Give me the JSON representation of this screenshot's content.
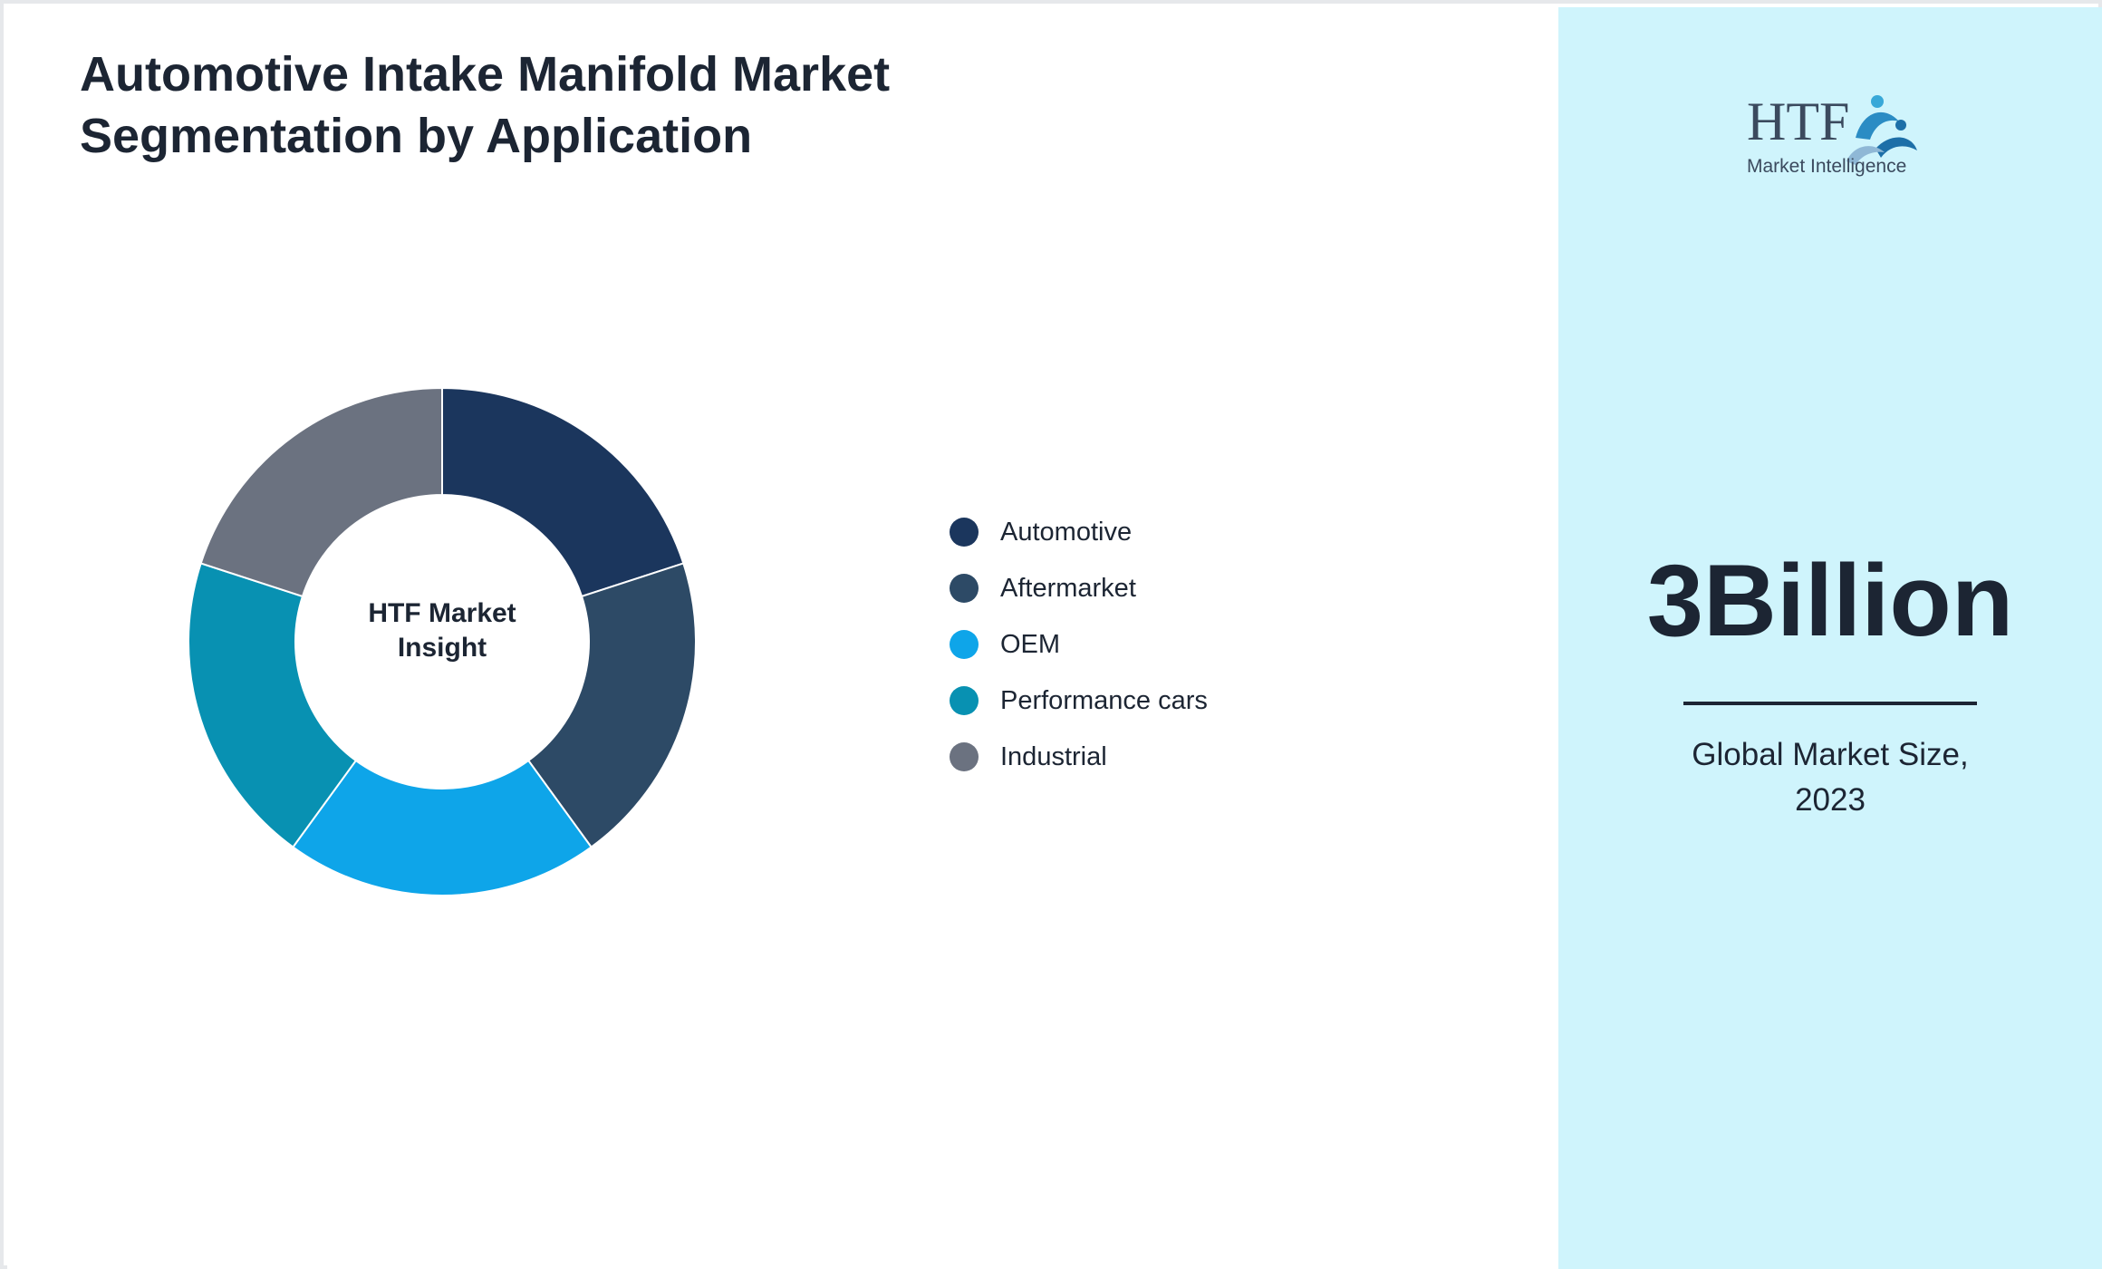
{
  "title": {
    "line1": "Automotive Intake Manifold Market",
    "line2": "Segmentation by Application"
  },
  "chart_data": {
    "type": "pie",
    "title": "Automotive Intake Manifold Market Segmentation by Application",
    "center_label": [
      "HTF Market",
      "Insight"
    ],
    "categories": [
      "Automotive",
      "Aftermarket",
      "OEM",
      "Performance cars",
      "Industrial"
    ],
    "values": [
      20,
      20,
      20,
      20,
      20
    ],
    "colors": [
      "#1b365d",
      "#2d4a66",
      "#0ea5e9",
      "#0891b2",
      "#6b7280"
    ],
    "legend_position": "right"
  },
  "sidebar": {
    "logo": {
      "brand": "HTF",
      "tagline": "Market Intelligence",
      "icon": "htf-logo-icon"
    },
    "value": "3Billion",
    "caption_line1": "Global Market Size,",
    "caption_line2": "2023"
  }
}
